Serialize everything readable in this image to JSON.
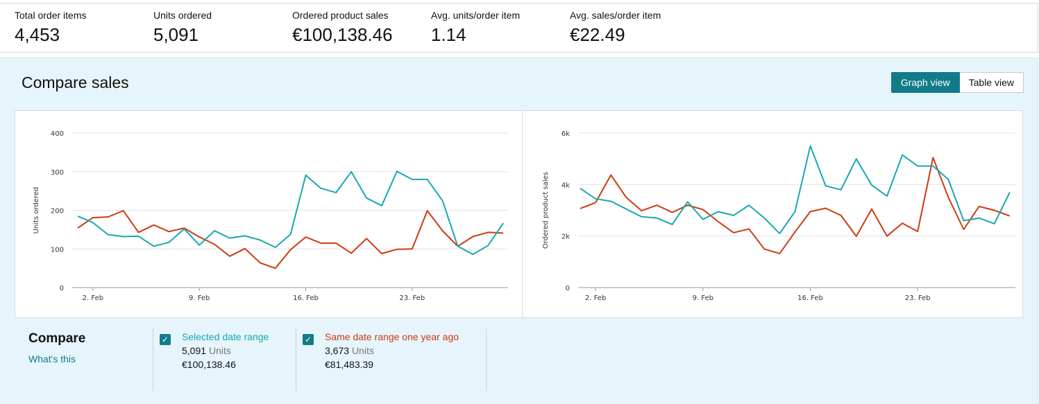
{
  "metrics": [
    {
      "label": "Total order items",
      "value": "4,453"
    },
    {
      "label": "Units ordered",
      "value": "5,091"
    },
    {
      "label": "Ordered product sales",
      "value": "€100,138.46"
    },
    {
      "label": "Avg. units/order item",
      "value": "1.14"
    },
    {
      "label": "Avg. sales/order item",
      "value": "€22.49"
    }
  ],
  "panel": {
    "title": "Compare sales",
    "view_buttons": [
      {
        "label": "Graph view",
        "active": true
      },
      {
        "label": "Table view",
        "active": false
      }
    ]
  },
  "colors": {
    "selected": "#17a8b0",
    "previous": "#cc3a10",
    "accent": "#127b8a"
  },
  "chart_data": [
    {
      "type": "line",
      "ylabel": "Units ordered",
      "ylim": [
        0,
        400
      ],
      "yticks": [
        "0",
        "100",
        "200",
        "300",
        "400"
      ],
      "xticks": [
        "2. Feb",
        "9. Feb",
        "16. Feb",
        "23. Feb"
      ],
      "x": [
        "1 Feb",
        "2 Feb",
        "3 Feb",
        "4 Feb",
        "5 Feb",
        "6 Feb",
        "7 Feb",
        "8 Feb",
        "9 Feb",
        "10 Feb",
        "11 Feb",
        "12 Feb",
        "13 Feb",
        "14 Feb",
        "15 Feb",
        "16 Feb",
        "17 Feb",
        "18 Feb",
        "19 Feb",
        "20 Feb",
        "21 Feb",
        "22 Feb",
        "23 Feb",
        "24 Feb",
        "25 Feb",
        "26 Feb",
        "27 Feb",
        "28 Feb",
        "29 Feb"
      ],
      "series": [
        {
          "name": "Selected date range",
          "values": [
            185,
            168,
            137,
            132,
            133,
            107,
            117,
            152,
            110,
            147,
            128,
            134,
            123,
            104,
            138,
            291,
            257,
            246,
            300,
            232,
            212,
            301,
            280,
            280,
            225,
            107,
            86,
            109,
            167
          ]
        },
        {
          "name": "Same date range one year ago",
          "values": [
            154,
            181,
            183,
            199,
            143,
            162,
            145,
            154,
            131,
            112,
            81,
            101,
            64,
            50,
            98,
            131,
            115,
            115,
            89,
            127,
            88,
            99,
            100,
            199,
            147,
            107,
            132,
            143,
            141
          ]
        }
      ],
      "grid": true
    },
    {
      "type": "line",
      "ylabel": "Ordered product sales",
      "ylim": [
        0,
        6000
      ],
      "yticks": [
        "0",
        "2k",
        "4k",
        "6k"
      ],
      "xticks": [
        "2. Feb",
        "9. Feb",
        "16. Feb",
        "23. Feb"
      ],
      "x": [
        "1 Feb",
        "2 Feb",
        "3 Feb",
        "4 Feb",
        "5 Feb",
        "6 Feb",
        "7 Feb",
        "8 Feb",
        "9 Feb",
        "10 Feb",
        "11 Feb",
        "12 Feb",
        "13 Feb",
        "14 Feb",
        "15 Feb",
        "16 Feb",
        "17 Feb",
        "18 Feb",
        "19 Feb",
        "20 Feb",
        "21 Feb",
        "22 Feb",
        "23 Feb",
        "24 Feb",
        "25 Feb",
        "26 Feb",
        "27 Feb",
        "28 Feb",
        "29 Feb"
      ],
      "series": [
        {
          "name": "Selected date range",
          "values": [
            3850,
            3450,
            3350,
            3050,
            2750,
            2700,
            2450,
            3330,
            2650,
            2950,
            2800,
            3200,
            2700,
            2100,
            2950,
            5500,
            3950,
            3800,
            5000,
            3980,
            3550,
            5150,
            4720,
            4720,
            4200,
            2600,
            2700,
            2480,
            3700
          ]
        },
        {
          "name": "Same date range one year ago",
          "values": [
            3070,
            3300,
            4370,
            3500,
            2980,
            3200,
            2920,
            3200,
            3030,
            2560,
            2130,
            2280,
            1500,
            1320,
            2160,
            2950,
            3080,
            2800,
            1990,
            3050,
            2000,
            2500,
            2180,
            5050,
            3500,
            2260,
            3150,
            3000,
            2780
          ]
        }
      ],
      "grid": true
    }
  ],
  "legend": {
    "title": "Compare",
    "help_link": "What's this",
    "items": [
      {
        "name": "Selected date range",
        "units_value": "5,091",
        "units_word": "Units",
        "sales": "€100,138.46",
        "checked": true
      },
      {
        "name": "Same date range one year ago",
        "units_value": "3,673",
        "units_word": "Units",
        "sales": "€81,483.39",
        "checked": true
      }
    ]
  }
}
